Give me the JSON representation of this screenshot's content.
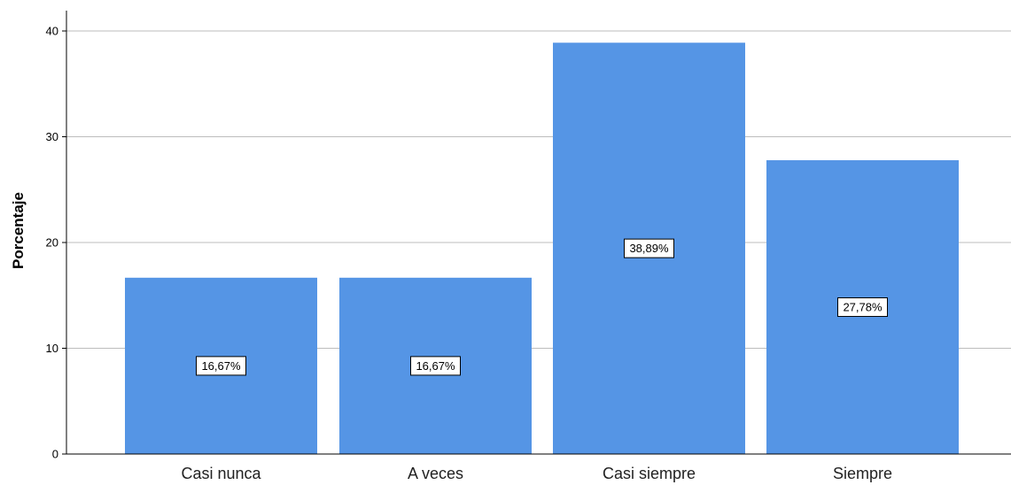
{
  "chart_data": {
    "type": "bar",
    "title": "",
    "xlabel": "",
    "ylabel": "Porcentaje",
    "categories": [
      "Casi nunca",
      "A veces",
      "Casi siempre",
      "Siempre"
    ],
    "values": [
      16.67,
      16.67,
      38.89,
      27.78
    ],
    "data_labels": [
      "16,67%",
      "16,67%",
      "38,89%",
      "27,78%"
    ],
    "ylim": [
      0,
      42
    ],
    "yticks": [
      0,
      10,
      20,
      30,
      40
    ],
    "grid": true,
    "bar_color": "#5595e5",
    "grid_color": "#bdbdbd"
  }
}
